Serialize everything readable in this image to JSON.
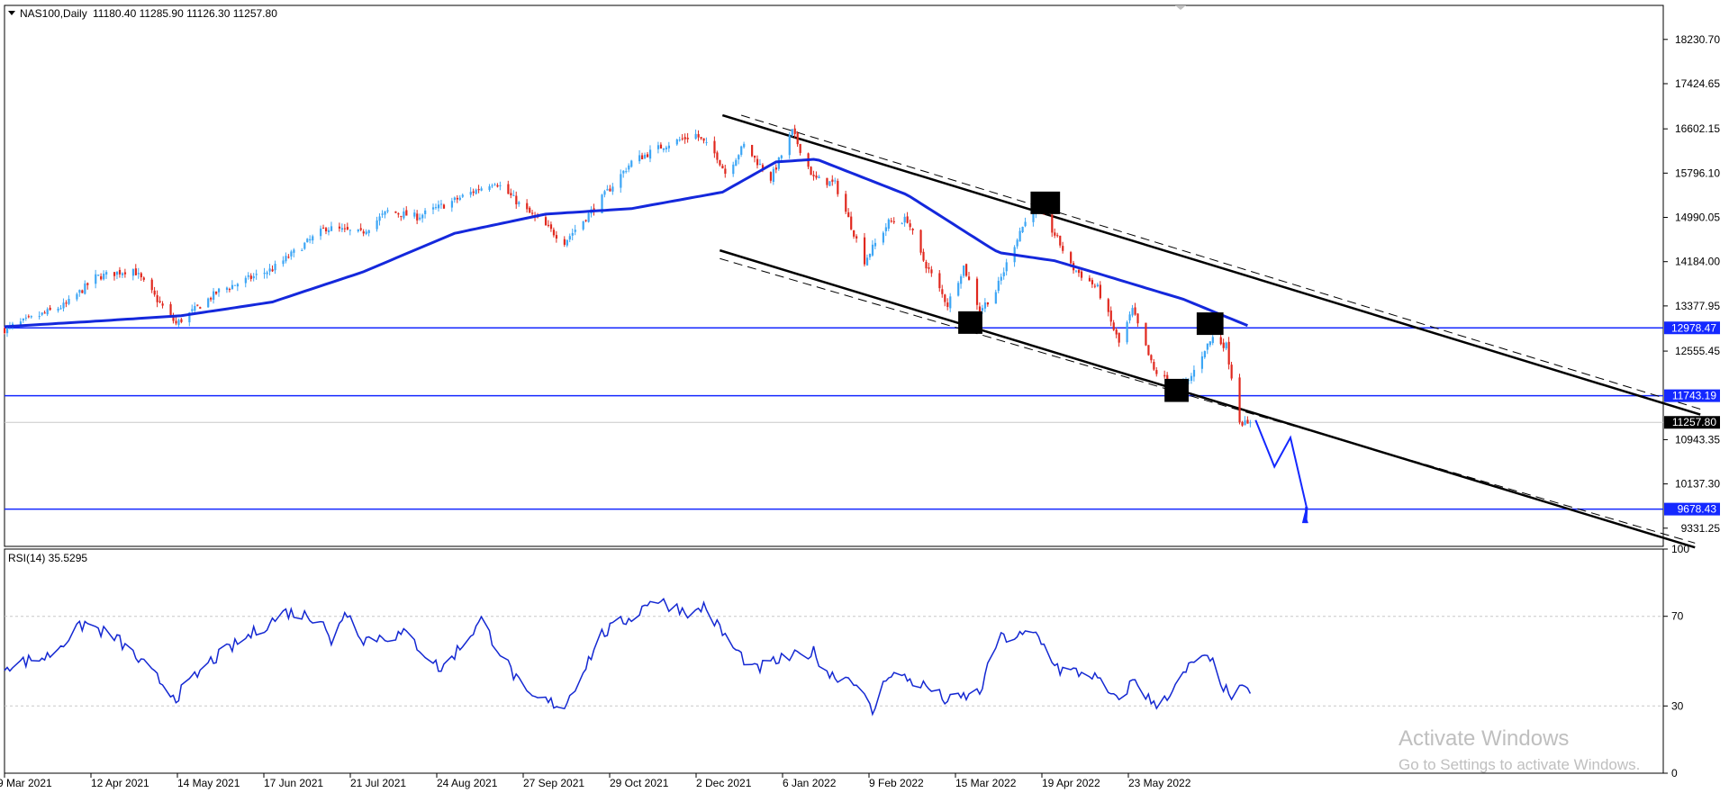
{
  "colors": {
    "bull": "#3da6f5",
    "bear": "#e0281e",
    "ma": "#1428dc",
    "hline": "#1428ff",
    "channel": "#000000",
    "rsi": "#1428d2",
    "frame": "#000000",
    "grid": "#c8c8c8",
    "current_tag_bg": "#000000",
    "current_tag_fg": "#ffffff"
  },
  "header": {
    "collapse_icon": "triangle-down-icon",
    "symbol": "NAS100,Daily",
    "ohlc": "11180.40 11285.90 11126.30 11257.80"
  },
  "chart_data": [
    {
      "type": "candlestick",
      "title": "NAS100,Daily",
      "ylim": [
        9000,
        18850
      ],
      "y_ticks": [
        "18230.70",
        "17424.65",
        "16602.15",
        "15796.10",
        "14990.05",
        "14184.00",
        "13377.95",
        "12555.45",
        "10943.35",
        "10137.30",
        "9331.25"
      ],
      "x_ticks": [
        "9 Mar 2021",
        "12 Apr 2021",
        "14 May 2021",
        "17 Jun 2021",
        "21 Jul 2021",
        "24 Aug 2021",
        "27 Sep 2021",
        "29 Oct 2021",
        "2 Dec 2021",
        "6 Jan 2022",
        "9 Feb 2022",
        "15 Mar 2022",
        "19 Apr 2022",
        "23 May 2022"
      ],
      "close_keyframes": [
        {
          "date": "2021-03-09",
          "close": 12950
        },
        {
          "date": "2021-04-01",
          "close": 13400
        },
        {
          "date": "2021-04-12",
          "close": 13900
        },
        {
          "date": "2021-04-26",
          "close": 14050
        },
        {
          "date": "2021-05-12",
          "close": 13050
        },
        {
          "date": "2021-05-28",
          "close": 13650
        },
        {
          "date": "2021-06-17",
          "close": 14050
        },
        {
          "date": "2021-07-07",
          "close": 14800
        },
        {
          "date": "2021-07-20",
          "close": 14700
        },
        {
          "date": "2021-07-30",
          "close": 15100
        },
        {
          "date": "2021-08-10",
          "close": 15000
        },
        {
          "date": "2021-08-24",
          "close": 15300
        },
        {
          "date": "2021-09-08",
          "close": 15650
        },
        {
          "date": "2021-09-20",
          "close": 15100
        },
        {
          "date": "2021-10-04",
          "close": 14550
        },
        {
          "date": "2021-10-14",
          "close": 15100
        },
        {
          "date": "2021-10-29",
          "close": 16000
        },
        {
          "date": "2021-11-10",
          "close": 16300
        },
        {
          "date": "2021-11-22",
          "close": 16500
        },
        {
          "date": "2021-11-30",
          "close": 16100
        },
        {
          "date": "2021-12-03",
          "close": 15800
        },
        {
          "date": "2021-12-10",
          "close": 16300
        },
        {
          "date": "2021-12-20",
          "close": 15700
        },
        {
          "date": "2021-12-28",
          "close": 16550
        },
        {
          "date": "2022-01-05",
          "close": 15700
        },
        {
          "date": "2022-01-13",
          "close": 15600
        },
        {
          "date": "2022-01-24",
          "close": 14200
        },
        {
          "date": "2022-02-02",
          "close": 14900
        },
        {
          "date": "2022-02-09",
          "close": 14950
        },
        {
          "date": "2022-02-14",
          "close": 14300
        },
        {
          "date": "2022-02-24",
          "close": 13400
        },
        {
          "date": "2022-03-02",
          "close": 14100
        },
        {
          "date": "2022-03-08",
          "close": 13300
        },
        {
          "date": "2022-03-14",
          "close": 13650
        },
        {
          "date": "2022-03-23",
          "close": 14750
        },
        {
          "date": "2022-03-29",
          "close": 15200
        },
        {
          "date": "2022-04-06",
          "close": 14600
        },
        {
          "date": "2022-04-11",
          "close": 14100
        },
        {
          "date": "2022-04-21",
          "close": 13700
        },
        {
          "date": "2022-04-29",
          "close": 12700
        },
        {
          "date": "2022-05-04",
          "close": 13300
        },
        {
          "date": "2022-05-12",
          "close": 12200
        },
        {
          "date": "2022-05-20",
          "close": 11900
        },
        {
          "date": "2022-05-25",
          "close": 12000
        },
        {
          "date": "2022-05-31",
          "close": 12600
        },
        {
          "date": "2022-06-03",
          "close": 12800
        },
        {
          "date": "2022-06-08",
          "close": 12650
        },
        {
          "date": "2022-06-10",
          "close": 12100
        },
        {
          "date": "2022-06-13",
          "close": 11300
        },
        {
          "date": "2022-06-16",
          "close": 11200
        },
        {
          "date": "2022-06-17",
          "close": 11257.8
        }
      ],
      "moving_average_keyframes": [
        {
          "date": "2021-03-09",
          "value": 13000
        },
        {
          "date": "2021-04-12",
          "value": 13100
        },
        {
          "date": "2021-05-14",
          "value": 13200
        },
        {
          "date": "2021-06-17",
          "value": 13450
        },
        {
          "date": "2021-07-21",
          "value": 14000
        },
        {
          "date": "2021-08-24",
          "value": 14700
        },
        {
          "date": "2021-09-27",
          "value": 15050
        },
        {
          "date": "2021-10-29",
          "value": 15150
        },
        {
          "date": "2021-12-02",
          "value": 15450
        },
        {
          "date": "2021-12-22",
          "value": 16000
        },
        {
          "date": "2022-01-06",
          "value": 16050
        },
        {
          "date": "2022-02-09",
          "value": 15400
        },
        {
          "date": "2022-03-10",
          "value": 14500
        },
        {
          "date": "2022-03-15",
          "value": 14350
        },
        {
          "date": "2022-04-05",
          "value": 14200
        },
        {
          "date": "2022-04-19",
          "value": 14000
        },
        {
          "date": "2022-05-23",
          "value": 13500
        },
        {
          "date": "2022-06-17",
          "value": 13000
        }
      ],
      "horizontal_levels": [
        12978.47,
        11743.19,
        9678.43
      ],
      "level_labels": [
        "12978.47",
        "11743.19",
        "9678.43"
      ],
      "current_price": 11257.8,
      "current_price_label": "11257.80",
      "channel_upper": {
        "solid": [
          [
            "2021-12-02",
            16850
          ],
          [
            "2022-12-02",
            11400
          ]
        ],
        "dashed": [
          [
            "2021-12-09",
            16850
          ],
          [
            "2022-12-02",
            11500
          ]
        ]
      },
      "channel_lower": {
        "solid": [
          [
            "2021-12-01",
            14390
          ],
          [
            "2022-11-30",
            8980
          ]
        ],
        "dashed": [
          [
            "2021-12-01",
            14240
          ],
          [
            "2022-11-30",
            9060
          ]
        ]
      },
      "highlight_boxes": [
        {
          "from": "2022-03-27",
          "to": "2022-04-07",
          "low": 15050,
          "high": 15460
        },
        {
          "from": "2022-02-28",
          "to": "2022-03-09",
          "low": 12870,
          "high": 13280
        },
        {
          "from": "2022-05-16",
          "to": "2022-05-25",
          "low": 11630,
          "high": 12050
        },
        {
          "from": "2022-05-28",
          "to": "2022-06-07",
          "low": 12850,
          "high": 13260
        }
      ],
      "projection_path": [
        [
          "2022-06-19",
          11300
        ],
        [
          "2022-06-26",
          10450
        ],
        [
          "2022-07-02",
          10980
        ],
        [
          "2022-07-08",
          9720
        ]
      ],
      "projection_end_date": "2022-07-08"
    },
    {
      "type": "line",
      "title": "RSI(14) 35.5295",
      "ylim": [
        0,
        100
      ],
      "y_ticks": [
        "100",
        "70",
        "30",
        "0"
      ],
      "levels": [
        70,
        30
      ],
      "series": [
        {
          "name": "RSI(14)",
          "keyframes": [
            {
              "date": "2021-03-09",
              "value": 48
            },
            {
              "date": "2021-03-25",
              "value": 52
            },
            {
              "date": "2021-04-08",
              "value": 67
            },
            {
              "date": "2021-04-20",
              "value": 60
            },
            {
              "date": "2021-05-12",
              "value": 34
            },
            {
              "date": "2021-05-25",
              "value": 50
            },
            {
              "date": "2021-06-22",
              "value": 72
            },
            {
              "date": "2021-07-06",
              "value": 69
            },
            {
              "date": "2021-07-09",
              "value": 56
            },
            {
              "date": "2021-07-14",
              "value": 73
            },
            {
              "date": "2021-07-21",
              "value": 60
            },
            {
              "date": "2021-08-06",
              "value": 62
            },
            {
              "date": "2021-08-19",
              "value": 46
            },
            {
              "date": "2021-09-03",
              "value": 68
            },
            {
              "date": "2021-09-20",
              "value": 34
            },
            {
              "date": "2021-10-04",
              "value": 30
            },
            {
              "date": "2021-10-18",
              "value": 62
            },
            {
              "date": "2021-11-01",
              "value": 72
            },
            {
              "date": "2021-11-05",
              "value": 78
            },
            {
              "date": "2021-11-22",
              "value": 71
            },
            {
              "date": "2021-11-25",
              "value": 75
            },
            {
              "date": "2021-11-30",
              "value": 66
            },
            {
              "date": "2021-12-06",
              "value": 56
            },
            {
              "date": "2021-12-14",
              "value": 46
            },
            {
              "date": "2021-12-22",
              "value": 50
            },
            {
              "date": "2022-01-05",
              "value": 54
            },
            {
              "date": "2022-01-11",
              "value": 44
            },
            {
              "date": "2022-01-20",
              "value": 42
            },
            {
              "date": "2022-01-27",
              "value": 27
            },
            {
              "date": "2022-02-02",
              "value": 45
            },
            {
              "date": "2022-02-09",
              "value": 42
            },
            {
              "date": "2022-02-17",
              "value": 38
            },
            {
              "date": "2022-02-24",
              "value": 32
            },
            {
              "date": "2022-03-08",
              "value": 36
            },
            {
              "date": "2022-03-15",
              "value": 60
            },
            {
              "date": "2022-03-29",
              "value": 62
            },
            {
              "date": "2022-04-07",
              "value": 46
            },
            {
              "date": "2022-04-19",
              "value": 44
            },
            {
              "date": "2022-04-28",
              "value": 32
            },
            {
              "date": "2022-05-05",
              "value": 42
            },
            {
              "date": "2022-05-12",
              "value": 30
            },
            {
              "date": "2022-05-20",
              "value": 38
            },
            {
              "date": "2022-05-28",
              "value": 52
            },
            {
              "date": "2022-06-03",
              "value": 49
            },
            {
              "date": "2022-06-09",
              "value": 34
            },
            {
              "date": "2022-06-14",
              "value": 37
            },
            {
              "date": "2022-06-17",
              "value": 35.5295
            }
          ]
        }
      ]
    }
  ],
  "watermark": {
    "line1": "Activate Windows",
    "line2": "Go to Settings to activate Windows."
  }
}
